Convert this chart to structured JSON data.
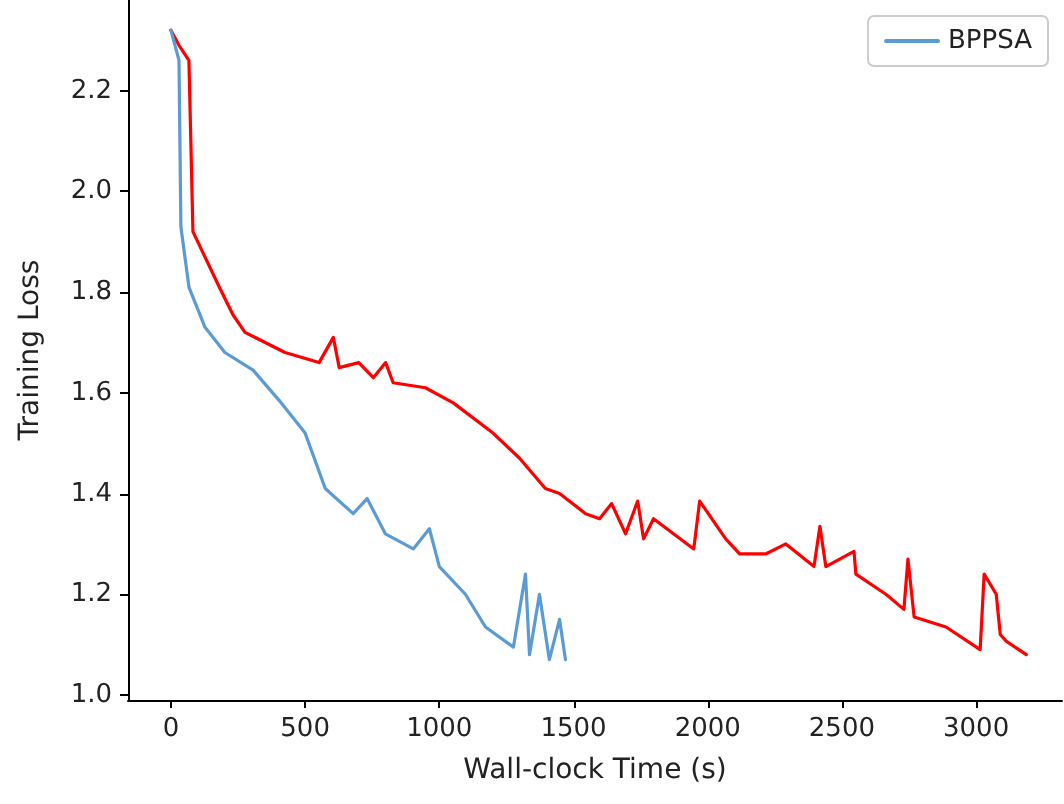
{
  "chart_data": {
    "type": "line",
    "xlabel": "Wall-clock Time (s)",
    "ylabel": "Training Loss",
    "xlim": [
      -160,
      3320
    ],
    "ylim": [
      0.99,
      2.38
    ],
    "xticks": [
      0,
      500,
      1000,
      1500,
      2000,
      2500,
      3000
    ],
    "yticks": [
      {
        "value": 1.0,
        "label": "1.0"
      },
      {
        "value": 1.2,
        "label": "1.2"
      },
      {
        "value": 1.4,
        "label": "1.4"
      },
      {
        "value": 1.6,
        "label": "1.6"
      },
      {
        "value": 1.8,
        "label": "1.8"
      },
      {
        "value": 2.0,
        "label": "2.0"
      },
      {
        "value": 2.2,
        "label": "2.2"
      }
    ],
    "grid": false,
    "legend": "top right",
    "marker": "none",
    "line_style": "solid",
    "series": [
      {
        "color": "#ff0000",
        "x": [
          0,
          30,
          67,
          82,
          180,
          231,
          276,
          425,
          552,
          605,
          627,
          700,
          754,
          800,
          828,
          948,
          1052,
          1200,
          1299,
          1395,
          1448,
          1545,
          1597,
          1642,
          1694,
          1739,
          1761,
          1798,
          1948,
          1970,
          2067,
          2119,
          2216,
          2291,
          2396,
          2418,
          2440,
          2545,
          2552,
          2664,
          2731,
          2746,
          2769,
          2888,
          3015,
          3030,
          3075,
          3090,
          3112,
          3187
        ],
        "values": [
          2.32,
          2.29,
          2.26,
          1.92,
          1.81,
          1.755,
          1.72,
          1.68,
          1.66,
          1.71,
          1.65,
          1.66,
          1.63,
          1.66,
          1.62,
          1.61,
          1.58,
          1.52,
          1.47,
          1.41,
          1.4,
          1.36,
          1.35,
          1.38,
          1.32,
          1.385,
          1.31,
          1.35,
          1.29,
          1.385,
          1.31,
          1.28,
          1.28,
          1.3,
          1.255,
          1.335,
          1.255,
          1.285,
          1.24,
          1.2,
          1.17,
          1.27,
          1.155,
          1.135,
          1.09,
          1.24,
          1.2,
          1.12,
          1.107,
          1.08
        ]
      },
      {
        "name": "BPPSA",
        "color": "#5b9bd5",
        "x": [
          0,
          30,
          37,
          67,
          127,
          201,
          306,
          403,
          500,
          575,
          679,
          731,
          799,
          903,
          963,
          1000,
          1097,
          1172,
          1276,
          1321,
          1336,
          1373,
          1410,
          1448,
          1470
        ],
        "values": [
          2.32,
          2.26,
          1.93,
          1.81,
          1.73,
          1.68,
          1.645,
          1.585,
          1.52,
          1.41,
          1.36,
          1.39,
          1.32,
          1.29,
          1.33,
          1.255,
          1.2,
          1.135,
          1.095,
          1.24,
          1.08,
          1.2,
          1.07,
          1.15,
          1.07
        ]
      }
    ]
  }
}
